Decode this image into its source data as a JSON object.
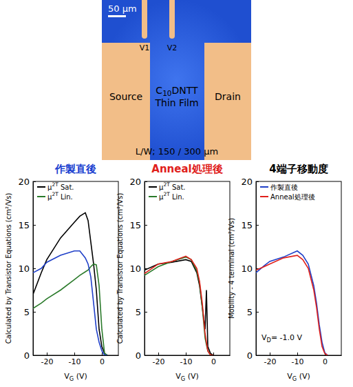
{
  "micrograph": {
    "scale_bar": "50 µm",
    "probes": [
      "V1",
      "V2"
    ],
    "source": "Source",
    "film": [
      "C10DNTT",
      "Thin Film"
    ],
    "drain": "Drain",
    "dimensions": "L/W; 150 / 300 µm"
  },
  "chart_data": [
    {
      "type": "line",
      "title": "作製直後",
      "xlabel": "VG (V)",
      "ylabel": "Calculated by Transistor Equations (cm²/Vs)",
      "x": [
        -25,
        -22,
        -20,
        -15,
        -10,
        -8,
        -6,
        -5,
        -4,
        -3,
        -2,
        -1,
        0,
        1,
        2
      ],
      "series": [
        {
          "name": "μ2T Sat.",
          "color": "#000000",
          "values": [
            7,
            9.5,
            11,
            13.5,
            15.3,
            16,
            16.4,
            15.5,
            13,
            10.5,
            7.5,
            3,
            1,
            0.2,
            0
          ]
        },
        {
          "name": "μ2T Lin.",
          "color": "#2a7a2a",
          "values": [
            5.4,
            6,
            6.5,
            7.5,
            8.7,
            9.2,
            9.6,
            9.8,
            10.2,
            10.5,
            10.4,
            8,
            3,
            0.2,
            0
          ]
        },
        {
          "color": "#1f3fc8",
          "values": [
            9.5,
            10,
            10.7,
            11.5,
            12,
            12,
            11.2,
            10.5,
            9,
            6,
            3,
            1.5,
            0.5,
            0,
            0
          ]
        }
      ],
      "xlim": [
        -25,
        6
      ],
      "xticks": [
        -20,
        -10,
        0
      ],
      "ylim": [
        0,
        20
      ],
      "yticks": [
        0,
        5,
        10,
        15,
        20
      ],
      "legend": "upper left"
    },
    {
      "type": "line",
      "title": "Anneal処理後",
      "xlabel": "VG (V)",
      "ylabel": "Calculated by Transistor Equations (cm²/Vs)",
      "x": [
        -25,
        -20,
        -15,
        -10,
        -8,
        -6,
        -5,
        -4,
        -3,
        -2.5,
        -2,
        -1,
        0
      ],
      "series": [
        {
          "name": "μ2T Sat.",
          "color": "#000000",
          "values": [
            9.8,
            10.5,
            10.7,
            11,
            10.8,
            9.5,
            8,
            5.5,
            3,
            7.5,
            1,
            0.2,
            0
          ]
        },
        {
          "name": "μ2T Lin.",
          "color": "#2a7a2a",
          "values": [
            9.2,
            10.2,
            10.8,
            11.3,
            11,
            9.7,
            8.3,
            5.5,
            2,
            1.2,
            0.5,
            0,
            0
          ]
        },
        {
          "color": "#e0201b",
          "values": [
            9.4,
            10.5,
            10.8,
            11.4,
            11,
            10,
            8.5,
            6,
            2.5,
            1.5,
            0.5,
            0,
            0
          ]
        }
      ],
      "xlim": [
        -25,
        6
      ],
      "xticks": [
        -20,
        -10,
        0
      ],
      "ylim": [
        0,
        20
      ],
      "yticks": [
        0,
        5,
        10,
        15,
        20
      ],
      "legend": "upper left"
    },
    {
      "type": "line",
      "title": "4端子移動度",
      "xlabel": "VG (V)",
      "ylabel": "Mobility - 4 terminal (cm²/Vs)",
      "annotation": "VD= -1.0 V",
      "x": [
        -25,
        -22,
        -20,
        -15,
        -10,
        -8,
        -6,
        -4,
        -3,
        -2,
        -1,
        0,
        1
      ],
      "series": [
        {
          "name": "作製直後",
          "color": "#1f3fc8",
          "values": [
            9.5,
            10.3,
            10.8,
            11.3,
            12,
            11.5,
            10.5,
            8,
            6,
            3.5,
            1.5,
            0.3,
            0
          ]
        },
        {
          "name": "Anneal処理後",
          "color": "#e0201b",
          "values": [
            9.8,
            10.2,
            10.5,
            11.2,
            11.5,
            11,
            10,
            7.5,
            5.5,
            3,
            1,
            0.2,
            0
          ]
        }
      ],
      "xlim": [
        -25,
        6
      ],
      "xticks": [
        -20,
        -10,
        0
      ],
      "ylim": [
        0,
        20
      ],
      "yticks": [
        0,
        5,
        10,
        15,
        20
      ],
      "legend": "upper left"
    }
  ]
}
